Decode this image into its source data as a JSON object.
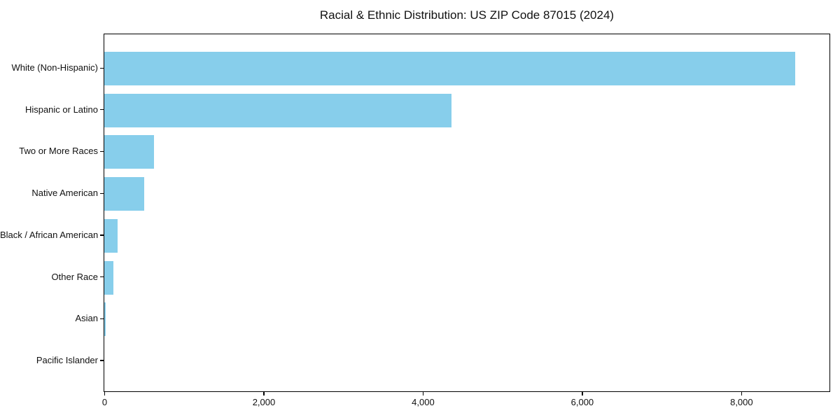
{
  "chart_data": {
    "type": "bar",
    "orientation": "horizontal",
    "title": "Racial & Ethnic Distribution: US ZIP Code 87015 (2024)",
    "categories": [
      "White (Non-Hispanic)",
      "Hispanic or Latino",
      "Two or More Races",
      "Native American",
      "Black / African American",
      "Other Race",
      "Asian",
      "Pacific Islander"
    ],
    "values": [
      8675,
      4360,
      625,
      500,
      165,
      115,
      15,
      0
    ],
    "xlabel": "",
    "ylabel": "",
    "xlim": [
      0,
      9100
    ],
    "x_ticks": [
      0,
      2000,
      4000,
      6000,
      8000
    ],
    "x_tick_labels": [
      "0",
      "2,000",
      "4,000",
      "6,000",
      "8,000"
    ],
    "bar_color": "#87CEEB",
    "axis_color": "#000000",
    "text_color": "#111111",
    "background": "#FFFFFF",
    "grid": false,
    "legend": null
  }
}
